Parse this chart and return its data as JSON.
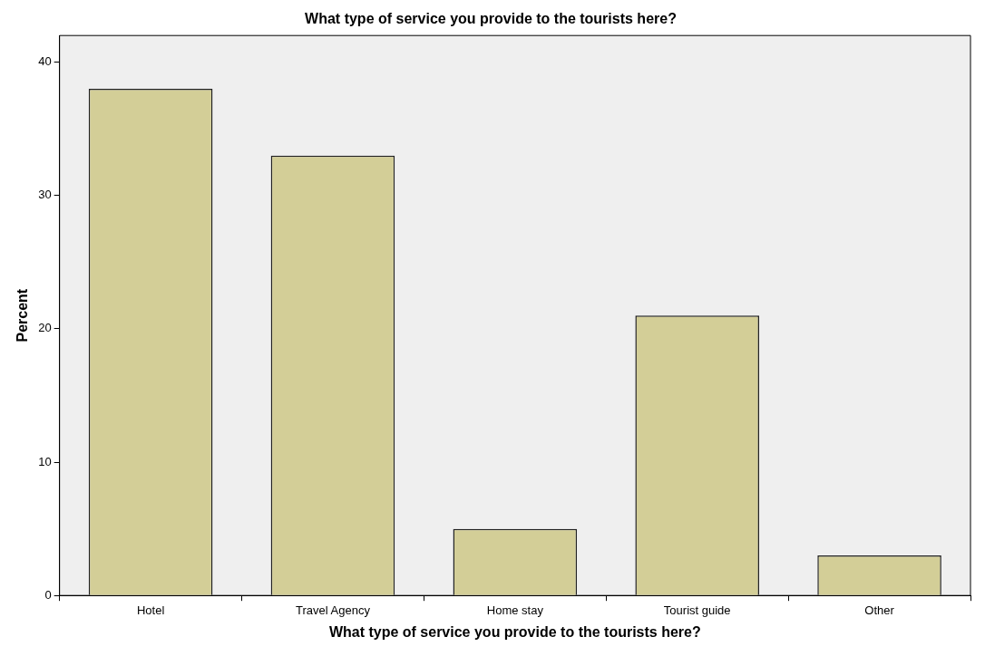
{
  "chart_data": {
    "type": "bar",
    "title": "What type of service you provide to the tourists here?",
    "xlabel": "What type of service you provide to the tourists here?",
    "ylabel": "Percent",
    "categories": [
      "Hotel",
      "Travel Agency",
      "Home stay",
      "Tourist guide",
      "Other"
    ],
    "values": [
      38,
      33,
      5,
      21,
      3
    ],
    "color": "#d3ce97",
    "ylim": [
      0,
      42
    ],
    "yticks": [
      0,
      10,
      20,
      30,
      40
    ],
    "grid": false,
    "legend": false
  }
}
